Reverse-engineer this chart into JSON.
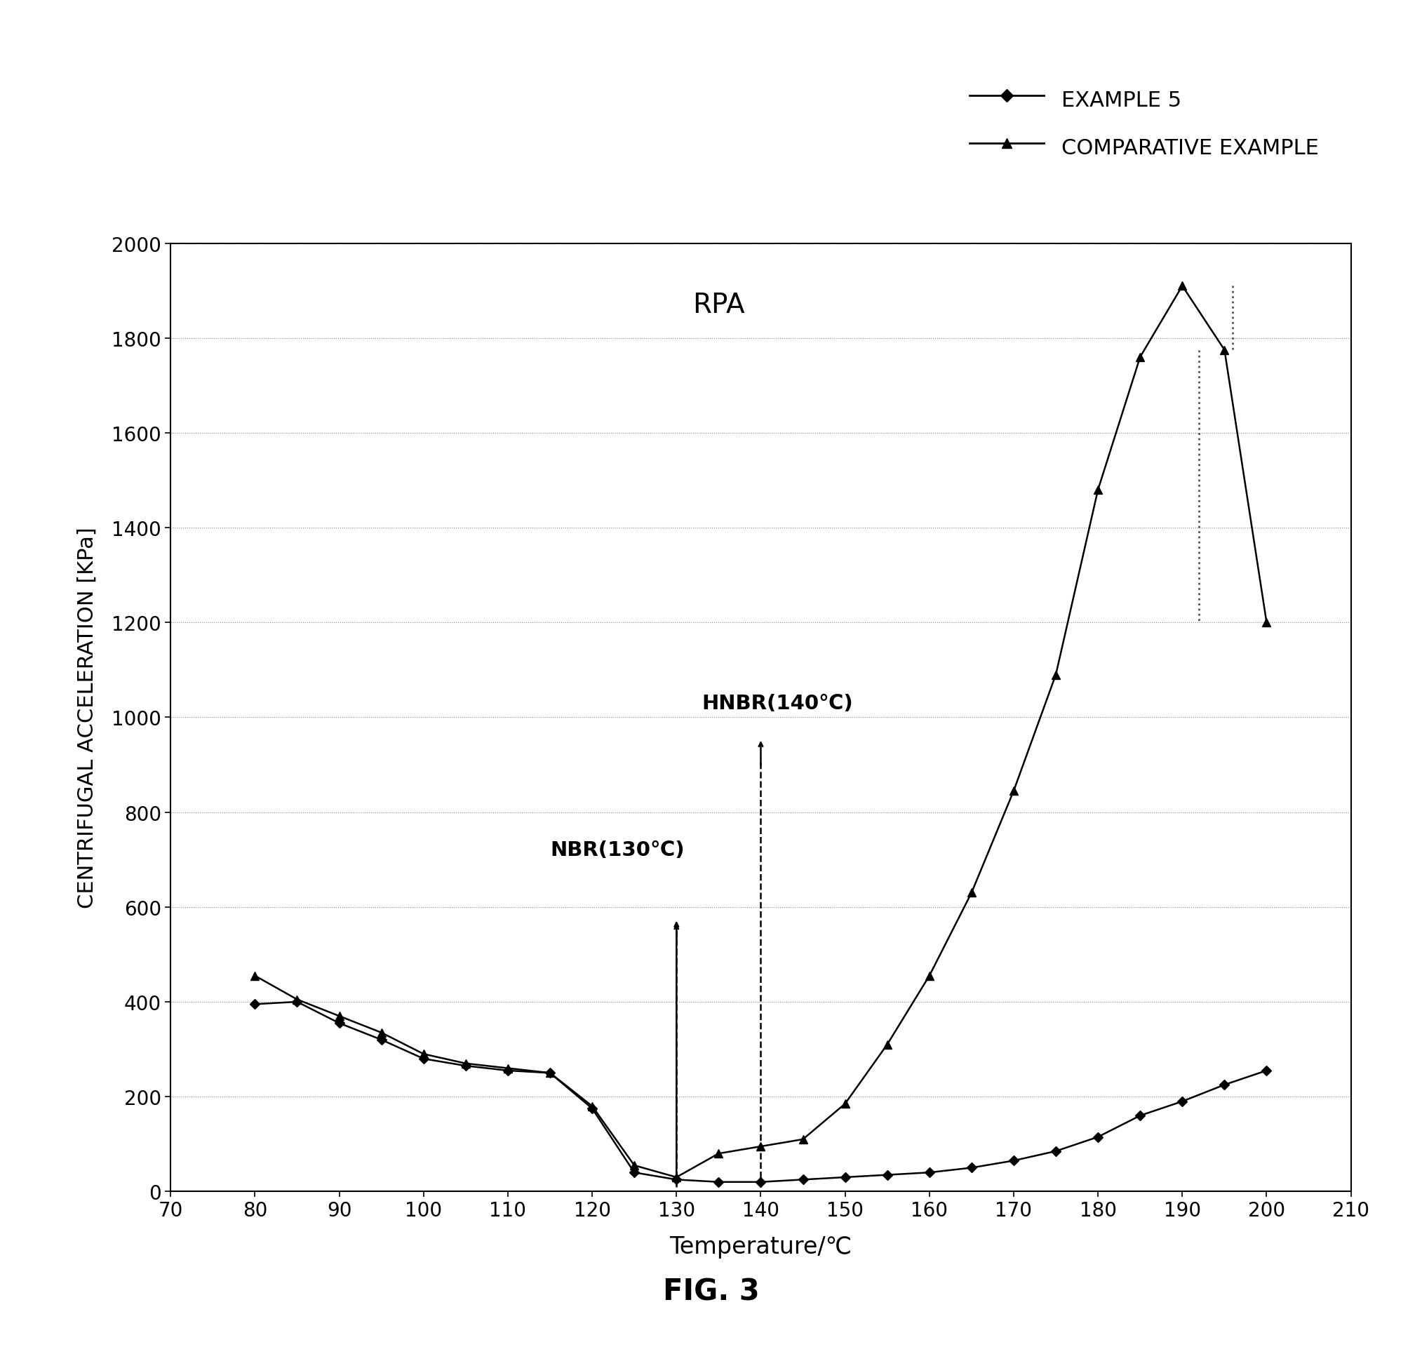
{
  "example5_x": [
    80,
    85,
    90,
    95,
    100,
    105,
    110,
    115,
    120,
    125,
    130,
    135,
    140,
    145,
    150,
    155,
    160,
    165,
    170,
    175,
    180,
    185,
    190,
    195,
    200
  ],
  "example5_y": [
    395,
    400,
    355,
    320,
    280,
    265,
    255,
    250,
    175,
    40,
    25,
    20,
    20,
    25,
    30,
    35,
    40,
    50,
    65,
    85,
    115,
    160,
    190,
    225,
    255
  ],
  "comp_x": [
    80,
    85,
    90,
    95,
    100,
    105,
    110,
    115,
    120,
    125,
    130,
    135,
    140,
    145,
    150,
    155,
    160,
    165,
    170,
    175,
    180,
    185,
    190,
    195,
    200
  ],
  "comp_y": [
    455,
    405,
    370,
    335,
    290,
    270,
    260,
    250,
    180,
    55,
    30,
    80,
    95,
    110,
    185,
    310,
    455,
    630,
    845,
    1090,
    1480,
    1760,
    1910,
    1775,
    1200
  ],
  "xlabel": "Temperature/℃",
  "ylabel": "CENTRIFUGAL ACCELERATION [KPa]",
  "legend_example5": "EXAMPLE 5",
  "legend_comp": "COMPARATIVE EXAMPLE",
  "annotation_nbr": "NBR(130℃)",
  "annotation_hnbr": "HNBR(140℃)",
  "rpa_text": "RPA",
  "fig_label": "FIG. 3",
  "xlim": [
    70,
    210
  ],
  "ylim": [
    0,
    2000
  ],
  "xticks": [
    70,
    80,
    90,
    100,
    110,
    120,
    130,
    140,
    150,
    160,
    170,
    180,
    190,
    200,
    210
  ],
  "yticks": [
    0,
    200,
    400,
    600,
    800,
    1000,
    1200,
    1400,
    1600,
    1800,
    2000
  ],
  "line_color": "#000000",
  "background_color": "#ffffff"
}
